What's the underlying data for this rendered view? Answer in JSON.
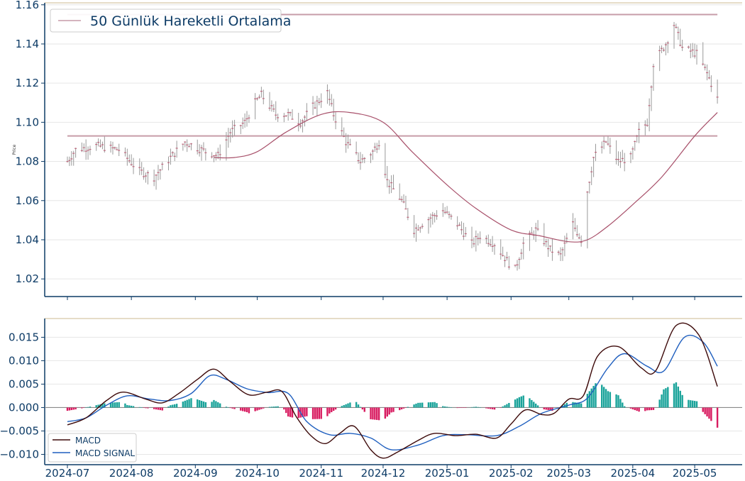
{
  "colors": {
    "axis": "#0d3b66",
    "top_border": "#d6c8a6",
    "ma_line": "#a8506a",
    "hline": "#c79ca8",
    "candle": "#9a9a9a",
    "candle_mark": "#c0667c",
    "macd": "#3d0a0a",
    "signal": "#1f5fbf",
    "hist_pos": "#1aa39a",
    "hist_neg": "#d81b60",
    "zero_line": "#8a8a8a",
    "grid": "#e6e6e6"
  },
  "chart_data": [
    {
      "type": "line",
      "title": "",
      "ylabel": "Price",
      "legend": {
        "labels": [
          "50 Günlük Hareketli Ortalama"
        ],
        "placement": "top-left"
      },
      "ylim": [
        1.011,
        1.161
      ],
      "yticks": [
        "1.02",
        "1.04",
        "1.06",
        "1.08",
        "1.10",
        "1.12",
        "1.14",
        "1.16"
      ],
      "x_range": [
        "2024-06-20",
        "2025-05-24"
      ],
      "xticks": [
        "2024-07-01",
        "2024-08-01",
        "2024-09-01",
        "2024-10-01",
        "2024-11-01",
        "2024-12-01",
        "2025-01-01",
        "2025-02-01",
        "2025-03-01",
        "2025-04-01",
        "2025-05-01"
      ],
      "grid": true,
      "hlines": [
        1.155,
        1.093
      ],
      "hline_x": [
        "2024-07-01",
        "2025-05-12"
      ],
      "price_keypoints": [
        [
          "2024-07-01",
          1.08
        ],
        [
          "2024-07-05",
          1.086
        ],
        [
          "2024-07-15",
          1.088
        ],
        [
          "2024-07-26",
          1.086
        ],
        [
          "2024-08-05",
          1.075
        ],
        [
          "2024-08-12",
          1.072
        ],
        [
          "2024-08-20",
          1.082
        ],
        [
          "2024-08-27",
          1.09
        ],
        [
          "2024-09-06",
          1.085
        ],
        [
          "2024-09-12",
          1.083
        ],
        [
          "2024-09-18",
          1.095
        ],
        [
          "2024-09-25",
          1.1
        ],
        [
          "2024-09-30",
          1.11
        ],
        [
          "2024-10-03",
          1.114
        ],
        [
          "2024-10-10",
          1.104
        ],
        [
          "2024-10-16",
          1.104
        ],
        [
          "2024-10-22",
          1.1
        ],
        [
          "2024-10-28",
          1.108
        ],
        [
          "2024-11-04",
          1.115
        ],
        [
          "2024-11-07",
          1.104
        ],
        [
          "2024-11-13",
          1.09
        ],
        [
          "2024-11-20",
          1.08
        ],
        [
          "2024-11-26",
          1.085
        ],
        [
          "2024-11-29",
          1.09
        ],
        [
          "2024-12-03",
          1.07
        ],
        [
          "2024-12-10",
          1.06
        ],
        [
          "2024-12-16",
          1.045
        ],
        [
          "2024-12-22",
          1.05
        ],
        [
          "2024-12-30",
          1.055
        ],
        [
          "2025-01-06",
          1.048
        ],
        [
          "2025-01-13",
          1.038
        ],
        [
          "2025-01-17",
          1.042
        ],
        [
          "2025-01-24",
          1.038
        ],
        [
          "2025-01-31",
          1.028
        ],
        [
          "2025-02-03",
          1.025
        ],
        [
          "2025-02-07",
          1.038
        ],
        [
          "2025-02-13",
          1.045
        ],
        [
          "2025-02-20",
          1.035
        ],
        [
          "2025-02-25",
          1.032
        ],
        [
          "2025-03-03",
          1.048
        ],
        [
          "2025-03-07",
          1.04
        ],
        [
          "2025-03-10",
          1.065
        ],
        [
          "2025-03-13",
          1.082
        ],
        [
          "2025-03-19",
          1.09
        ],
        [
          "2025-03-25",
          1.08
        ],
        [
          "2025-03-31",
          1.082
        ],
        [
          "2025-04-04",
          1.095
        ],
        [
          "2025-04-08",
          1.1
        ],
        [
          "2025-04-11",
          1.13
        ],
        [
          "2025-04-17",
          1.14
        ],
        [
          "2025-04-21",
          1.15
        ],
        [
          "2025-04-25",
          1.138
        ],
        [
          "2025-05-02",
          1.135
        ],
        [
          "2025-05-07",
          1.125
        ],
        [
          "2025-05-12",
          1.112
        ]
      ],
      "ma_keypoints": [
        [
          "2024-09-10",
          1.082
        ],
        [
          "2024-09-20",
          1.082
        ],
        [
          "2024-10-01",
          1.085
        ],
        [
          "2024-10-15",
          1.095
        ],
        [
          "2024-11-01",
          1.104
        ],
        [
          "2024-11-15",
          1.105
        ],
        [
          "2024-12-01",
          1.1
        ],
        [
          "2024-12-15",
          1.085
        ],
        [
          "2025-01-01",
          1.068
        ],
        [
          "2025-01-15",
          1.056
        ],
        [
          "2025-02-01",
          1.045
        ],
        [
          "2025-02-15",
          1.042
        ],
        [
          "2025-03-01",
          1.039
        ],
        [
          "2025-03-10",
          1.04
        ],
        [
          "2025-03-20",
          1.047
        ],
        [
          "2025-04-01",
          1.058
        ],
        [
          "2025-04-15",
          1.072
        ],
        [
          "2025-05-01",
          1.093
        ],
        [
          "2025-05-12",
          1.105
        ]
      ]
    },
    {
      "type": "line",
      "title": "",
      "ylim": [
        -0.0122,
        0.019
      ],
      "yticks": [
        "−0.010",
        "−0.005",
        "0.000",
        "0.005",
        "0.010",
        "0.015"
      ],
      "xticks": [
        "2024-07",
        "2024-08",
        "2024-09",
        "2024-10",
        "2024-11",
        "2024-12",
        "2025-01",
        "2025-02",
        "2025-03",
        "2025-04",
        "2025-05"
      ],
      "grid": true,
      "legend": {
        "labels": [
          "MACD",
          "MACD SIGNAL"
        ],
        "placement": "bottom-left"
      },
      "series": [
        {
          "name": "MACD",
          "points": [
            [
              "2024-07-01",
              -0.0037
            ],
            [
              "2024-07-10",
              -0.0022
            ],
            [
              "2024-07-20",
              0.0015
            ],
            [
              "2024-07-28",
              0.0033
            ],
            [
              "2024-08-08",
              0.0018
            ],
            [
              "2024-08-16",
              0.001
            ],
            [
              "2024-08-24",
              0.003
            ],
            [
              "2024-09-02",
              0.006
            ],
            [
              "2024-09-10",
              0.0082
            ],
            [
              "2024-09-18",
              0.0055
            ],
            [
              "2024-09-27",
              0.0027
            ],
            [
              "2024-10-06",
              0.0033
            ],
            [
              "2024-10-13",
              0.0034
            ],
            [
              "2024-10-20",
              -0.002
            ],
            [
              "2024-10-27",
              -0.006
            ],
            [
              "2024-11-03",
              -0.0077
            ],
            [
              "2024-11-10",
              -0.0055
            ],
            [
              "2024-11-17",
              -0.004
            ],
            [
              "2024-11-25",
              -0.009
            ],
            [
              "2024-12-01",
              -0.0108
            ],
            [
              "2024-12-08",
              -0.0095
            ],
            [
              "2024-12-18",
              -0.007
            ],
            [
              "2024-12-26",
              -0.0055
            ],
            [
              "2025-01-05",
              -0.006
            ],
            [
              "2025-01-15",
              -0.0057
            ],
            [
              "2025-01-25",
              -0.0065
            ],
            [
              "2025-02-01",
              -0.0035
            ],
            [
              "2025-02-08",
              -0.0005
            ],
            [
              "2025-02-16",
              -0.0015
            ],
            [
              "2025-02-22",
              -0.0012
            ],
            [
              "2025-03-01",
              0.0018
            ],
            [
              "2025-03-08",
              0.0025
            ],
            [
              "2025-03-15",
              0.011
            ],
            [
              "2025-03-25",
              0.013
            ],
            [
              "2025-04-05",
              0.0085
            ],
            [
              "2025-04-12",
              0.0078
            ],
            [
              "2025-04-22",
              0.0175
            ],
            [
              "2025-05-03",
              0.0155
            ],
            [
              "2025-05-12",
              0.0045
            ]
          ]
        },
        {
          "name": "MACD SIGNAL",
          "points": [
            [
              "2024-07-01",
              -0.003
            ],
            [
              "2024-07-10",
              -0.0022
            ],
            [
              "2024-07-20",
              0.0005
            ],
            [
              "2024-07-30",
              0.0025
            ],
            [
              "2024-08-10",
              0.0018
            ],
            [
              "2024-08-20",
              0.0015
            ],
            [
              "2024-08-30",
              0.003
            ],
            [
              "2024-09-08",
              0.0068
            ],
            [
              "2024-09-16",
              0.006
            ],
            [
              "2024-09-26",
              0.004
            ],
            [
              "2024-10-06",
              0.0032
            ],
            [
              "2024-10-16",
              0.003
            ],
            [
              "2024-10-25",
              -0.003
            ],
            [
              "2024-11-05",
              -0.0058
            ],
            [
              "2024-11-15",
              -0.0055
            ],
            [
              "2024-11-25",
              -0.0065
            ],
            [
              "2024-12-05",
              -0.009
            ],
            [
              "2024-12-18",
              -0.008
            ],
            [
              "2024-12-30",
              -0.006
            ],
            [
              "2025-01-10",
              -0.0058
            ],
            [
              "2025-01-25",
              -0.006
            ],
            [
              "2025-02-05",
              -0.004
            ],
            [
              "2025-02-16",
              -0.0012
            ],
            [
              "2025-03-01",
              0.0005
            ],
            [
              "2025-03-10",
              0.002
            ],
            [
              "2025-03-20",
              0.0085
            ],
            [
              "2025-03-28",
              0.0115
            ],
            [
              "2025-04-08",
              0.0088
            ],
            [
              "2025-04-16",
              0.0078
            ],
            [
              "2025-04-26",
              0.015
            ],
            [
              "2025-05-05",
              0.014
            ],
            [
              "2025-05-12",
              0.0088
            ]
          ]
        }
      ]
    }
  ]
}
